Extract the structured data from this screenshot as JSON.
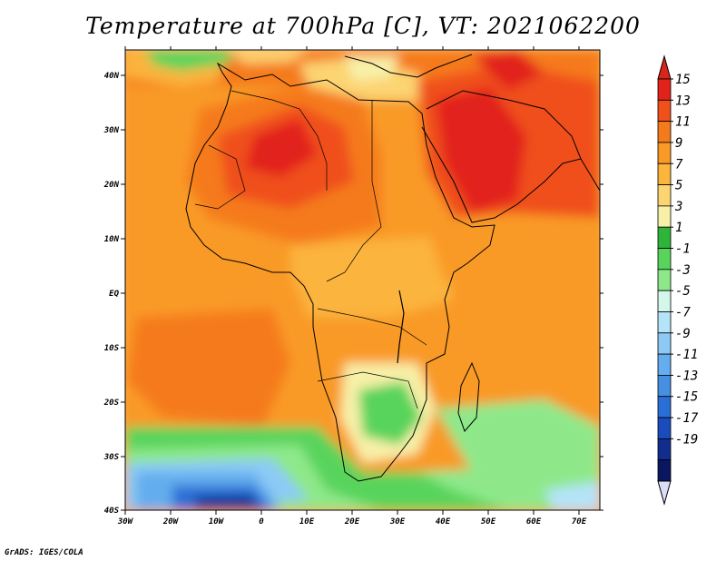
{
  "title": "Temperature at 700hPa [C], VT: 2021062200",
  "credit": "GrADS: IGES/COLA",
  "map": {
    "projection": "latlon",
    "lon_range": [
      -30,
      75
    ],
    "lat_range": [
      -40,
      45
    ],
    "lon_ticks": [
      "30W",
      "20W",
      "10W",
      "0",
      "10E",
      "20E",
      "30E",
      "40E",
      "50E",
      "60E",
      "70E"
    ],
    "lat_ticks": [
      "40N",
      "30N",
      "20N",
      "10N",
      "EQ",
      "10S",
      "20S",
      "30S",
      "40S"
    ],
    "field": "temperature",
    "units": "C",
    "level_hPa": 700
  },
  "colorbar": {
    "labels": [
      "15",
      "13",
      "11",
      "9",
      "7",
      "5",
      "3",
      "1",
      "-1",
      "-3",
      "-5",
      "-7",
      "-9",
      "-11",
      "-13",
      "-15",
      "-17",
      "-19"
    ],
    "colors": [
      "#e2231a",
      "#f0501a",
      "#f57a1c",
      "#f99a26",
      "#fbb43c",
      "#fcd472",
      "#f8f0a8",
      "#2fb43a",
      "#58d45c",
      "#8ee88a",
      "#d4f7ec",
      "#b4e4f8",
      "#8ccaf5",
      "#64adee",
      "#4690e4",
      "#2a6fd6",
      "#1a4cbe",
      "#112e8f",
      "#0a1660"
    ],
    "extend_top_color": "#d8261a",
    "extend_bottom_color": "#dadcf8"
  }
}
